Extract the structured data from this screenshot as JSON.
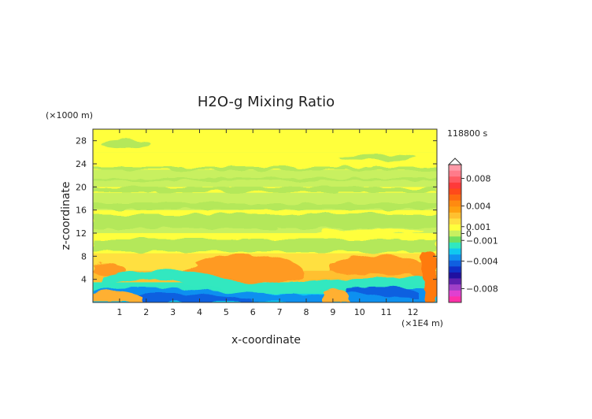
{
  "chart_data": {
    "type": "heatmap",
    "title": "H2O-g Mixing Ratio",
    "time_label": "118800 s",
    "xlabel": "x-coordinate",
    "ylabel": "z-coordinate",
    "x_unit": "(×1E4 m)",
    "y_unit": "(×1000 m)",
    "xlim": [
      0,
      12.9
    ],
    "ylim": [
      0,
      30
    ],
    "x_ticks": [
      1,
      2,
      3,
      4,
      5,
      6,
      7,
      8,
      9,
      10,
      11,
      12
    ],
    "y_ticks": [
      4,
      8,
      12,
      16,
      20,
      24,
      28
    ],
    "colorbar": {
      "range": [
        -0.01,
        0.01
      ],
      "levels": [
        0.01,
        0.009,
        0.008,
        0.007,
        0.006,
        0.005,
        0.004,
        0.003,
        0.002,
        0.001,
        0.0005,
        0,
        -0.0005,
        -0.001,
        -0.002,
        -0.003,
        -0.004,
        -0.005,
        -0.006,
        -0.007,
        -0.008,
        -0.009,
        -0.01
      ],
      "colors": [
        "#ff9aa8",
        "#ff7b8a",
        "#ff5a62",
        "#ff3a3a",
        "#ff4a1a",
        "#ff6a10",
        "#ff8a10",
        "#ffa010",
        "#ffc030",
        "#ffe040",
        "#ffff3c",
        "#c8f060",
        "#70e060",
        "#30e8c0",
        "#10c8f0",
        "#1090f0",
        "#1060e0",
        "#1030c8",
        "#2010a0",
        "#6020b0",
        "#a040c8",
        "#e040d0",
        "#ff30a8"
      ],
      "tick_values": [
        0.008,
        0.004,
        0.001,
        0,
        -0.001,
        -0.004,
        -0.008
      ],
      "tick_labels": [
        "0.008",
        "0.004",
        "0.001",
        "0",
        "−0.001",
        "−0.004",
        "−0.008"
      ]
    },
    "field_bands": [
      {
        "z": [
          0,
          1.5
        ],
        "value": -0.002
      },
      {
        "z": [
          1.5,
          3.5
        ],
        "value": -0.001
      },
      {
        "z": [
          3.5,
          5.5
        ],
        "value": 0.002
      },
      {
        "z": [
          5.5,
          8.5
        ],
        "value": 0.001
      },
      {
        "z": [
          8.5,
          12
        ],
        "value": 0.0005
      },
      {
        "z": [
          12,
          14
        ],
        "value": 0
      },
      {
        "z": [
          14,
          16
        ],
        "value": 0.0005
      },
      {
        "z": [
          16,
          19
        ],
        "value": 0
      },
      {
        "z": [
          19,
          20
        ],
        "value": 0.0005
      },
      {
        "z": [
          20,
          23
        ],
        "value": 0
      },
      {
        "z": [
          23,
          26
        ],
        "value": 0.0005
      },
      {
        "z": [
          26,
          30
        ],
        "value": 0.0005
      }
    ]
  }
}
